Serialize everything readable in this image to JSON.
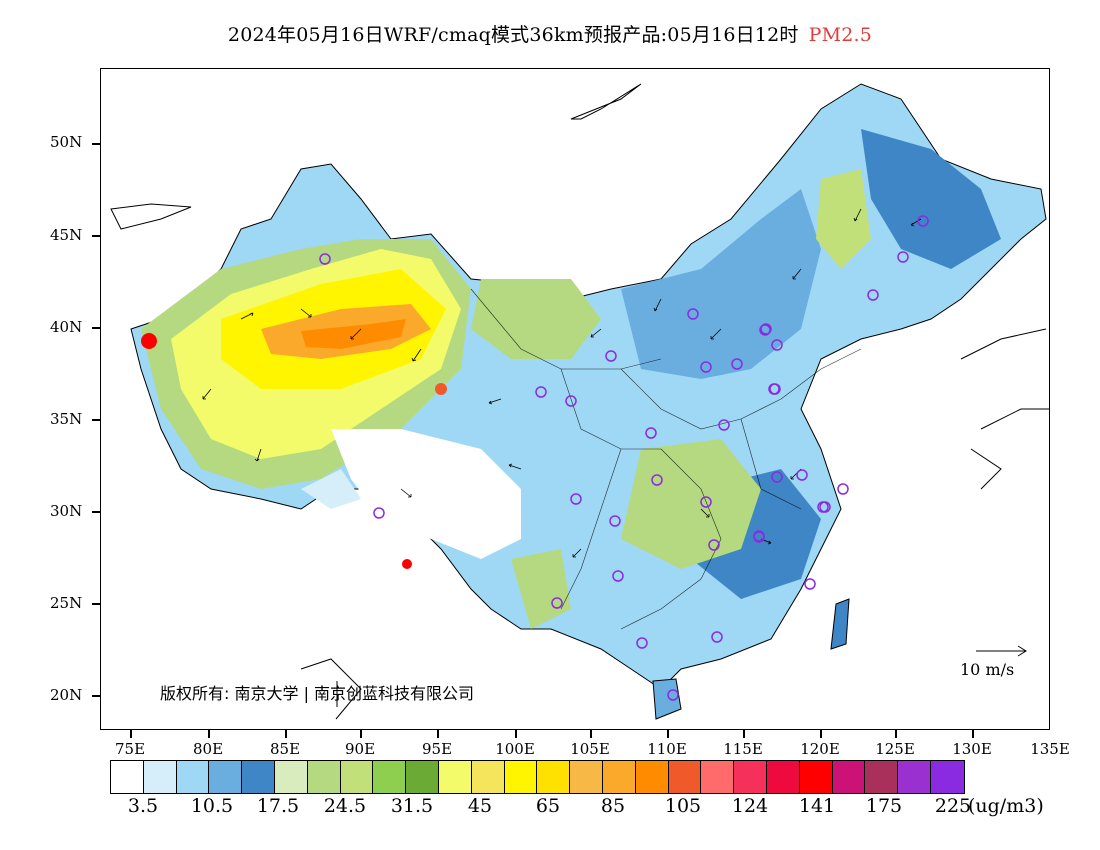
{
  "title": {
    "main": "2024年05月16日WRF/cmaq模式36km预报产品:05月16日12时",
    "species": "PM2.5"
  },
  "latitude_labels": [
    "50N",
    "45N",
    "40N",
    "35N",
    "30N",
    "25N",
    "20N"
  ],
  "longitude_labels": [
    "75E",
    "80E",
    "85E",
    "90E",
    "95E",
    "100E",
    "105E",
    "110E",
    "115E",
    "120E",
    "125E",
    "130E",
    "135E"
  ],
  "colorbar": {
    "colors": [
      "#ffffff",
      "#d6eefa",
      "#9fd8f5",
      "#6aaee0",
      "#3f86c6",
      "#d9ecbe",
      "#b5d981",
      "#c1e07a",
      "#8fcf4f",
      "#6aaa35",
      "#f3fb6a",
      "#f4e55c",
      "#fff500",
      "#ffe100",
      "#f8b845",
      "#fba92b",
      "#ff8c00",
      "#f05a2a",
      "#ff6b6b",
      "#f5305a",
      "#ee0a3e",
      "#ff0000",
      "#cc1177",
      "#a8305a",
      "#9a30d0",
      "#8a2be2"
    ],
    "labels": [
      "3.5",
      "10.5",
      "17.5",
      "24.5",
      "31.5",
      "45",
      "65",
      "85",
      "105",
      "124",
      "141",
      "175",
      "225"
    ],
    "unit": "(ug/m3)"
  },
  "copyright": "版权所有: 南京大学 | 南京创蓝科技有限公司",
  "wind_reference": "10 m/s",
  "stations_count": 36
}
